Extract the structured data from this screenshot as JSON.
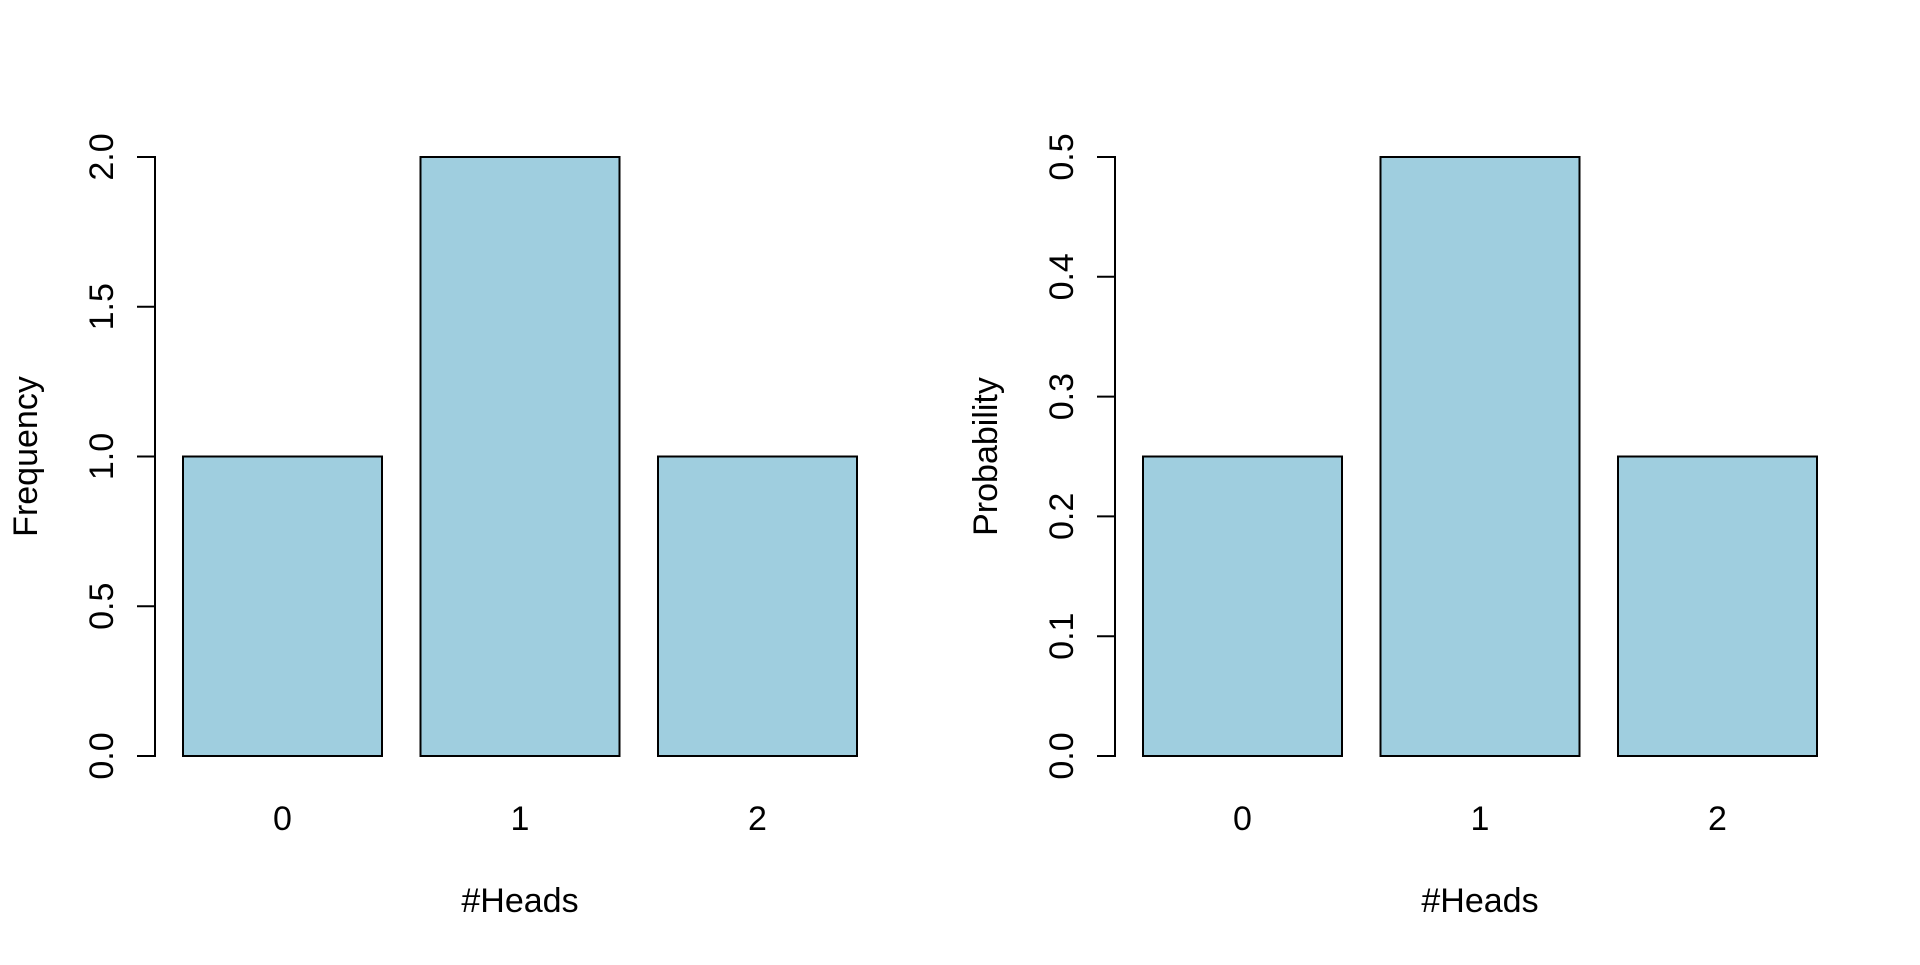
{
  "page": {
    "background": "#ffffff",
    "title": ""
  },
  "chart_data": [
    {
      "type": "bar",
      "name": "frequency-barplot",
      "title": "",
      "categories": [
        "0",
        "1",
        "2"
      ],
      "values": [
        1,
        2,
        1
      ],
      "xlabel": "#Heads",
      "ylabel": "Frequency",
      "ylim": [
        0,
        2
      ],
      "ytick_step": 0.5,
      "ytick_labels": [
        "0.0",
        "0.5",
        "1.0",
        "1.5",
        "2.0"
      ],
      "bar_fill": "#9FCEDF",
      "bar_stroke": "#000000",
      "axis_color": "#000000",
      "grid": false,
      "legend": "none",
      "y_tick_label_rotation": 90
    },
    {
      "type": "bar",
      "name": "probability-barplot",
      "title": "",
      "categories": [
        "0",
        "1",
        "2"
      ],
      "values": [
        0.25,
        0.5,
        0.25
      ],
      "xlabel": "#Heads",
      "ylabel": "Probability",
      "ylim": [
        0,
        0.5
      ],
      "ytick_step": 0.1,
      "ytick_labels": [
        "0.0",
        "0.1",
        "0.2",
        "0.3",
        "0.4",
        "0.5"
      ],
      "bar_fill": "#9FCEDF",
      "bar_stroke": "#000000",
      "axis_color": "#000000",
      "grid": false,
      "legend": "none",
      "y_tick_label_rotation": 90
    }
  ]
}
